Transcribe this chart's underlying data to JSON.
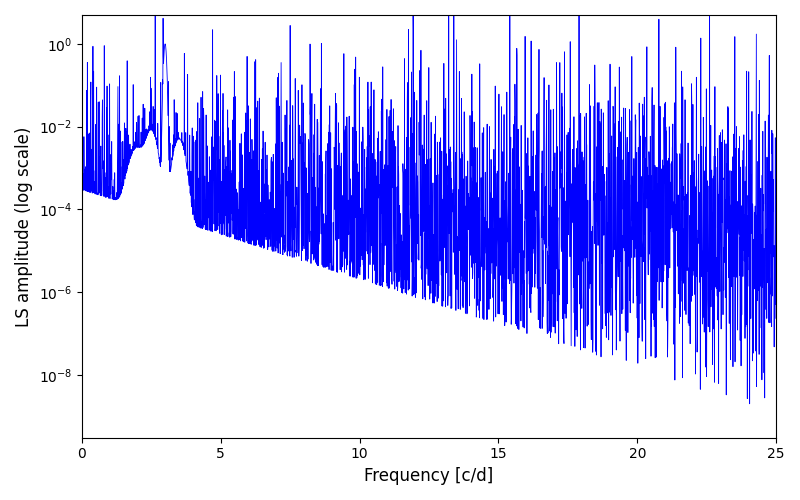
{
  "xlabel": "Frequency [c/d]",
  "ylabel": "LS amplitude (log scale)",
  "xlim": [
    0,
    25
  ],
  "ylim_log": [
    3e-10,
    5.0
  ],
  "line_color": "#0000FF",
  "line_width": 0.6,
  "background_color": "#ffffff",
  "freq_max": 25.0,
  "num_points": 3000,
  "seed": 7,
  "peak_freq": 3.0,
  "peak_amp": 1.0,
  "base_noise_level_low": 8e-05,
  "base_noise_level_high": 3e-05,
  "log_noise_sigma": 1.8
}
